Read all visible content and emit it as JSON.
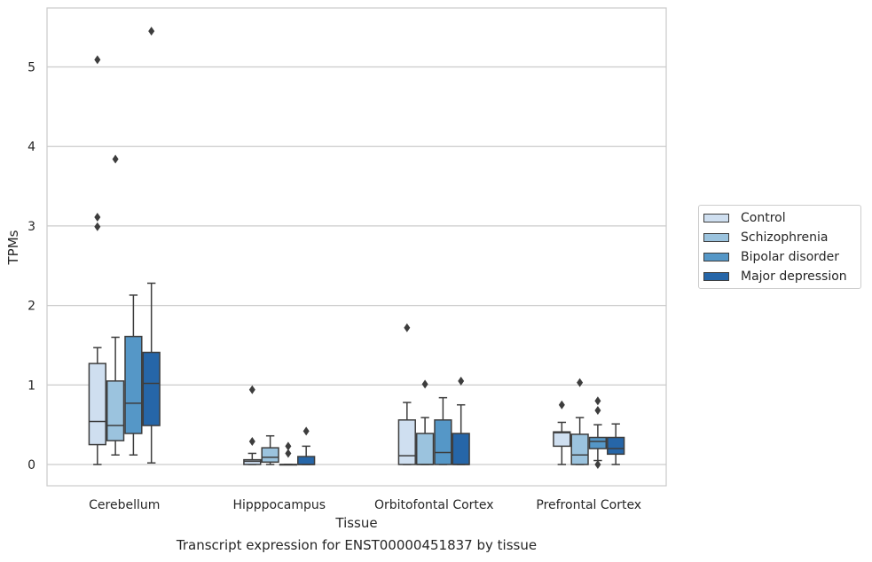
{
  "chart_data": {
    "type": "box",
    "xlabel": "Tissue",
    "ylabel": "TPMs",
    "ylim": [
      -0.27,
      5.74
    ],
    "yticks": [
      0,
      1,
      2,
      3,
      4,
      5
    ],
    "grid": "horizontal",
    "legend_position": "right",
    "categories": [
      "Cerebellum",
      "Hipppocampus",
      "Orbitofontal Cortex",
      "Prefrontal Cortex"
    ],
    "series": [
      {
        "name": "Control",
        "color": "#cfdff0",
        "boxes": [
          {
            "min": 0.0,
            "q1": 0.25,
            "median": 0.54,
            "q3": 1.27,
            "max": 1.47,
            "outliers": [
              2.99,
              3.11,
              5.09
            ]
          },
          {
            "min": 0.0,
            "q1": 0.0,
            "median": 0.04,
            "q3": 0.06,
            "max": 0.14,
            "outliers": [
              0.29,
              0.94
            ]
          },
          {
            "min": 0.0,
            "q1": 0.0,
            "median": 0.11,
            "q3": 0.56,
            "max": 0.78,
            "outliers": [
              1.72
            ]
          },
          {
            "min": 0.0,
            "q1": 0.23,
            "median": 0.4,
            "q3": 0.41,
            "max": 0.53,
            "outliers": [
              0.75
            ]
          }
        ]
      },
      {
        "name": "Schizophrenia",
        "color": "#9bc3de",
        "boxes": [
          {
            "min": 0.12,
            "q1": 0.3,
            "median": 0.49,
            "q3": 1.05,
            "max": 1.6,
            "outliers": [
              3.84
            ]
          },
          {
            "min": 0.0,
            "q1": 0.03,
            "median": 0.09,
            "q3": 0.21,
            "max": 0.36,
            "outliers": []
          },
          {
            "min": 0.0,
            "q1": 0.0,
            "median": 0.0,
            "q3": 0.39,
            "max": 0.59,
            "outliers": [
              1.01
            ]
          },
          {
            "min": 0.0,
            "q1": 0.0,
            "median": 0.12,
            "q3": 0.38,
            "max": 0.59,
            "outliers": [
              1.03
            ]
          }
        ]
      },
      {
        "name": "Bipolar disorder",
        "color": "#5597c7",
        "boxes": [
          {
            "min": 0.12,
            "q1": 0.39,
            "median": 0.77,
            "q3": 1.61,
            "max": 2.13,
            "outliers": []
          },
          {
            "min": 0.0,
            "q1": 0.0,
            "median": 0.0,
            "q3": 0.0,
            "max": 0.0,
            "outliers": [
              0.14,
              0.23
            ]
          },
          {
            "min": 0.0,
            "q1": 0.0,
            "median": 0.15,
            "q3": 0.56,
            "max": 0.84,
            "outliers": []
          },
          {
            "min": 0.05,
            "q1": 0.2,
            "median": 0.29,
            "q3": 0.34,
            "max": 0.5,
            "outliers": [
              0.0,
              0.68,
              0.8
            ]
          }
        ]
      },
      {
        "name": "Major depression",
        "color": "#2666a8",
        "boxes": [
          {
            "min": 0.02,
            "q1": 0.49,
            "median": 1.02,
            "q3": 1.41,
            "max": 2.28,
            "outliers": [
              5.45
            ]
          },
          {
            "min": 0.0,
            "q1": 0.0,
            "median": 0.0,
            "q3": 0.1,
            "max": 0.23,
            "outliers": [
              0.42
            ]
          },
          {
            "min": 0.0,
            "q1": 0.0,
            "median": 0.0,
            "q3": 0.39,
            "max": 0.75,
            "outliers": [
              1.05
            ]
          },
          {
            "min": 0.0,
            "q1": 0.13,
            "median": 0.2,
            "q3": 0.34,
            "max": 0.51,
            "outliers": []
          }
        ]
      }
    ]
  },
  "caption": "Transcript expression for ENST00000451837 by tissue"
}
